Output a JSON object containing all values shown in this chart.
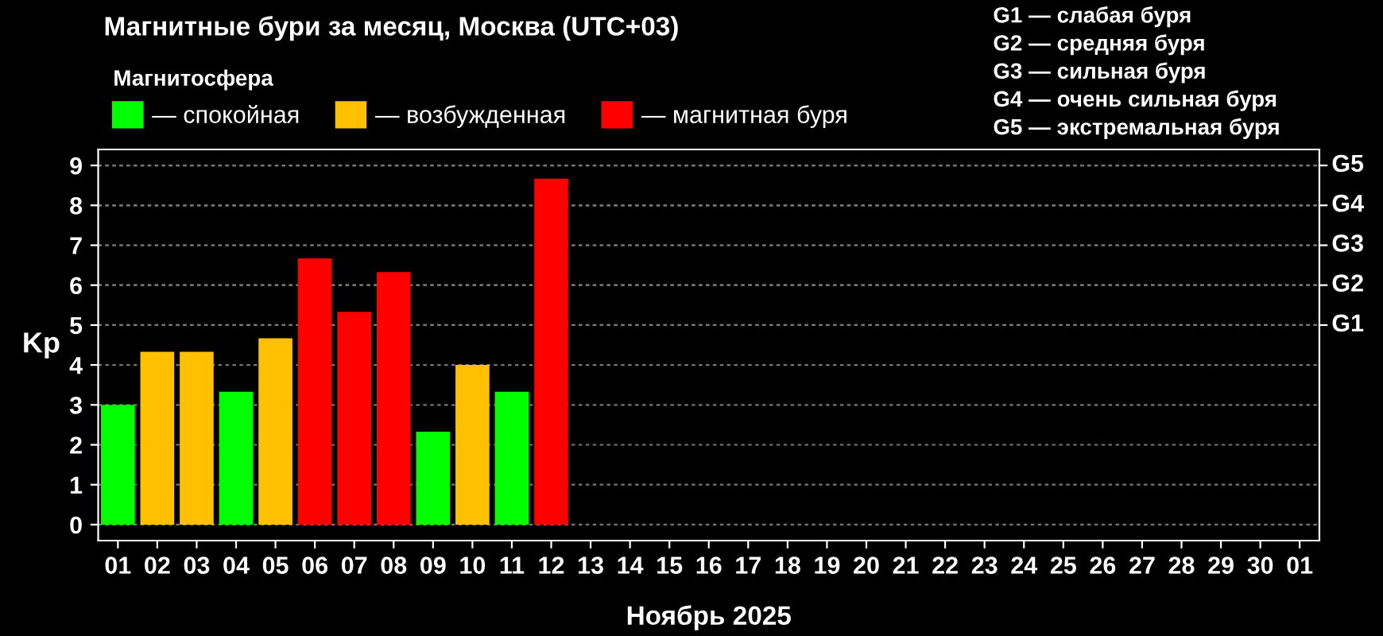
{
  "chart_data": {
    "type": "bar",
    "title": "Магнитные бури за месяц, Москва (UTC+03)",
    "xlabel": "Ноябрь 2025",
    "ylabel": "Kp",
    "legend_title": "Магнитосфера",
    "legend": "top left",
    "grid": "y",
    "categories": [
      "01",
      "02",
      "03",
      "04",
      "05",
      "06",
      "07",
      "08",
      "09",
      "10",
      "11",
      "12",
      "13",
      "14",
      "15",
      "16",
      "17",
      "18",
      "19",
      "20",
      "21",
      "22",
      "23",
      "24",
      "25",
      "26",
      "27",
      "28",
      "29",
      "30",
      "01"
    ],
    "series": [
      {
        "name": "— спокойная",
        "color": "#00ff00",
        "values": [
          3.0,
          null,
          null,
          3.33,
          null,
          null,
          null,
          null,
          2.33,
          null,
          3.33,
          null,
          null,
          null,
          null,
          null,
          null,
          null,
          null,
          null,
          null,
          null,
          null,
          null,
          null,
          null,
          null,
          null,
          null,
          null,
          null
        ]
      },
      {
        "name": "— возбужденная",
        "color": "#ffc000",
        "values": [
          null,
          4.33,
          4.33,
          null,
          4.67,
          null,
          null,
          null,
          null,
          4.0,
          null,
          null,
          null,
          null,
          null,
          null,
          null,
          null,
          null,
          null,
          null,
          null,
          null,
          null,
          null,
          null,
          null,
          null,
          null,
          null,
          null
        ]
      },
      {
        "name": "— магнитная буря",
        "color": "#ff0000",
        "values": [
          null,
          null,
          null,
          null,
          null,
          6.67,
          5.33,
          6.33,
          null,
          null,
          null,
          8.67,
          null,
          null,
          null,
          null,
          null,
          null,
          null,
          null,
          null,
          null,
          null,
          null,
          null,
          null,
          null,
          null,
          null,
          null,
          null
        ]
      }
    ],
    "ylim": [
      -0.4,
      9.4
    ],
    "yticks": [
      0,
      1,
      2,
      3,
      4,
      5,
      6,
      7,
      8,
      9
    ],
    "ref_lines": [
      {
        "axis": "y",
        "value": 5,
        "label": "G1"
      },
      {
        "axis": "y",
        "value": 6,
        "label": "G2"
      },
      {
        "axis": "y",
        "value": 7,
        "label": "G3"
      },
      {
        "axis": "y",
        "value": 8,
        "label": "G4"
      },
      {
        "axis": "y",
        "value": 9,
        "label": "G5"
      }
    ],
    "annotations": [
      "G1 — слабая буря",
      "G2 — средняя буря",
      "G3 — сильная буря",
      "G4 — очень сильная буря",
      "G5 — экстремальная буря"
    ]
  }
}
